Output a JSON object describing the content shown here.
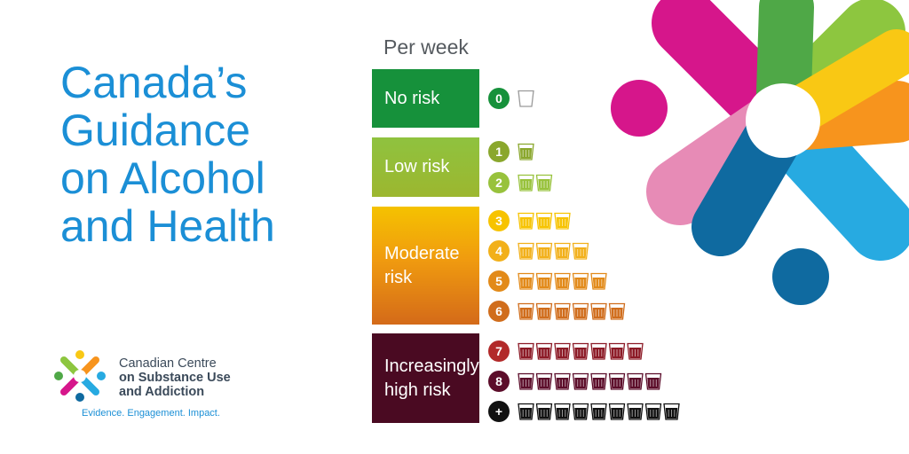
{
  "headline": {
    "line1": "Canada’s",
    "line2": "Guidance",
    "line3": "on Alcohol",
    "line4": "and Health"
  },
  "organization": {
    "name_line1": "Canadian Centre",
    "name_line2": "on Substance Use",
    "name_line3": "and Addiction",
    "tagline": "Evidence. Engagement. Impact."
  },
  "chart": {
    "period_label": "Per week",
    "categories": [
      {
        "line1": "No risk",
        "line2": "",
        "color": "#16913b"
      },
      {
        "line1": "Low risk",
        "line2": "",
        "color": "#9cb72f"
      },
      {
        "line1": "Moderate",
        "line2": "risk",
        "color": "#f09b0f"
      },
      {
        "line1": "Increasingly",
        "line2": "high risk",
        "color": "#4a0a22"
      }
    ],
    "rows": [
      {
        "label": "0",
        "drinks": 1,
        "filled": false,
        "color": "#16913b",
        "liquid": "#16913b"
      },
      {
        "label": "1",
        "drinks": 1,
        "filled": true,
        "color": "#8aa72d",
        "liquid": "#8aa72d"
      },
      {
        "label": "2",
        "drinks": 2,
        "filled": true,
        "color": "#98c23c",
        "liquid": "#98c23c"
      },
      {
        "label": "3",
        "drinks": 3,
        "filled": true,
        "color": "#f7c300",
        "liquid": "#f7c300"
      },
      {
        "label": "4",
        "drinks": 4,
        "filled": true,
        "color": "#f2b01a",
        "liquid": "#f2b01a"
      },
      {
        "label": "5",
        "drinks": 5,
        "filled": true,
        "color": "#e28a19",
        "liquid": "#e28a19"
      },
      {
        "label": "6",
        "drinks": 6,
        "filled": true,
        "color": "#d06d1c",
        "liquid": "#d06d1c"
      },
      {
        "label": "7",
        "drinks": 7,
        "filled": true,
        "color": "#b22a2a",
        "liquid": "#8c1a26"
      },
      {
        "label": "8",
        "drinks": 8,
        "filled": true,
        "color": "#5c0d2a",
        "liquid": "#5c0d2a"
      },
      {
        "label": "+",
        "drinks": 9,
        "filled": true,
        "color": "#111111",
        "liquid": "#111111"
      }
    ]
  },
  "colors": {
    "headline": "#1b8fd6",
    "magenta": "#d6168b",
    "pink": "#e78bb6",
    "lime": "#8dc63f",
    "green": "#4fa847",
    "yellow": "#f9c814",
    "orange": "#f7941d",
    "sky": "#27aae1",
    "navy": "#0f6aa0"
  }
}
